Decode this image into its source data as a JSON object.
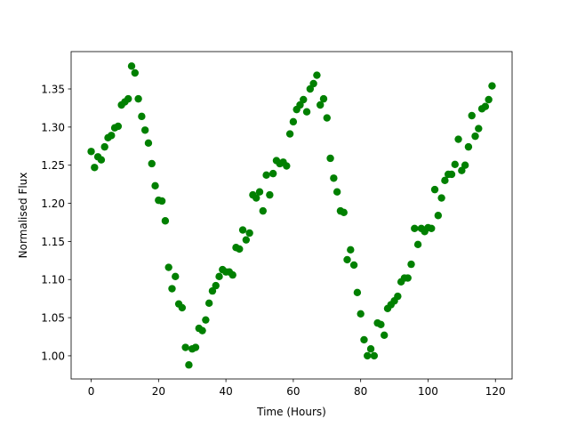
{
  "chart_data": {
    "type": "scatter",
    "x_label": "Time (Hours)",
    "y_label": "Normalised Flux",
    "color": "#008000",
    "x": [
      0,
      1,
      2,
      3,
      4,
      5,
      6,
      7,
      8,
      9,
      10,
      11,
      12,
      13,
      14,
      15,
      16,
      17,
      18,
      19,
      20,
      21,
      22,
      23,
      24,
      25,
      26,
      27,
      28,
      29,
      30,
      31,
      32,
      33,
      34,
      35,
      36,
      37,
      38,
      39,
      40,
      41,
      42,
      43,
      44,
      45,
      46,
      47,
      48,
      49,
      50,
      51,
      52,
      53,
      54,
      55,
      56,
      57,
      58,
      59,
      60,
      61,
      62,
      63,
      64,
      65,
      66,
      67,
      68,
      69,
      70,
      71,
      72,
      73,
      74,
      75,
      76,
      77,
      78,
      79,
      80,
      81,
      82,
      83,
      84,
      85,
      86,
      87,
      88,
      89,
      90,
      91,
      92,
      93,
      94,
      95,
      96,
      97,
      98,
      99,
      100,
      101,
      102,
      103,
      104,
      105,
      106,
      107,
      108,
      109,
      110,
      111,
      112,
      113,
      114,
      115,
      116,
      117,
      118,
      119
    ],
    "values": [
      1.268,
      1.247,
      1.261,
      1.257,
      1.274,
      1.286,
      1.289,
      1.299,
      1.301,
      1.329,
      1.333,
      1.337,
      1.38,
      1.371,
      1.337,
      1.314,
      1.296,
      1.279,
      1.252,
      1.223,
      1.204,
      1.203,
      1.177,
      1.116,
      1.088,
      1.104,
      1.068,
      1.063,
      1.011,
      0.988,
      1.009,
      1.011,
      1.036,
      1.033,
      1.047,
      1.069,
      1.085,
      1.092,
      1.104,
      1.113,
      1.11,
      1.11,
      1.106,
      1.142,
      1.14,
      1.165,
      1.152,
      1.161,
      1.211,
      1.207,
      1.215,
      1.19,
      1.237,
      1.211,
      1.239,
      1.256,
      1.252,
      1.254,
      1.249,
      1.291,
      1.307,
      1.323,
      1.329,
      1.336,
      1.32,
      1.35,
      1.357,
      1.368,
      1.329,
      1.337,
      1.312,
      1.259,
      1.233,
      1.215,
      1.19,
      1.188,
      1.126,
      1.139,
      1.119,
      1.083,
      1.055,
      1.021,
      1.0,
      1.009,
      1.0,
      1.043,
      1.041,
      1.027,
      1.062,
      1.067,
      1.072,
      1.078,
      1.097,
      1.102,
      1.102,
      1.12,
      1.167,
      1.146,
      1.167,
      1.163,
      1.168,
      1.167,
      1.218,
      1.184,
      1.207,
      1.23,
      1.238,
      1.238,
      1.251,
      1.284,
      1.243,
      1.25,
      1.274,
      1.315,
      1.288,
      1.298,
      1.324,
      1.327,
      1.336,
      1.354
    ],
    "xlim": [
      -5.95,
      124.95
    ],
    "ylim": [
      0.9696,
      1.399
    ],
    "xticks": [
      0,
      20,
      40,
      60,
      80,
      100,
      120
    ],
    "yticks": [
      {
        "value": 1,
        "label": "1.00"
      },
      1.05,
      {
        "value": 1.1,
        "label": "1.10"
      },
      1.15,
      {
        "value": 1.2,
        "label": "1.20"
      },
      1.25,
      {
        "value": 1.3,
        "label": "1.30"
      },
      1.35
    ]
  }
}
